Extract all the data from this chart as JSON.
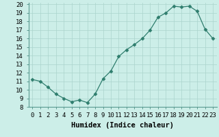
{
  "x": [
    0,
    1,
    2,
    3,
    4,
    5,
    6,
    7,
    8,
    9,
    10,
    11,
    12,
    13,
    14,
    15,
    16,
    17,
    18,
    19,
    20,
    21,
    22,
    23
  ],
  "y": [
    11.2,
    11.0,
    10.3,
    9.5,
    9.0,
    8.6,
    8.8,
    8.5,
    9.5,
    11.3,
    12.2,
    13.9,
    14.7,
    15.3,
    16.0,
    17.0,
    18.5,
    19.0,
    19.8,
    19.7,
    19.8,
    19.2,
    17.1,
    16.0
  ],
  "line_color": "#2e7d6d",
  "marker": "D",
  "marker_size": 2.5,
  "background_color": "#cceee8",
  "grid_color": "#aad4cc",
  "xlabel": "Humidex (Indice chaleur)",
  "xlim": [
    -0.5,
    23.5
  ],
  "ylim": [
    8,
    20.2
  ],
  "yticks": [
    8,
    9,
    10,
    11,
    12,
    13,
    14,
    15,
    16,
    17,
    18,
    19,
    20
  ],
  "xticks": [
    0,
    1,
    2,
    3,
    4,
    5,
    6,
    7,
    8,
    9,
    10,
    11,
    12,
    13,
    14,
    15,
    16,
    17,
    18,
    19,
    20,
    21,
    22,
    23
  ],
  "xlabel_fontsize": 7.5,
  "tick_fontsize": 6.5
}
